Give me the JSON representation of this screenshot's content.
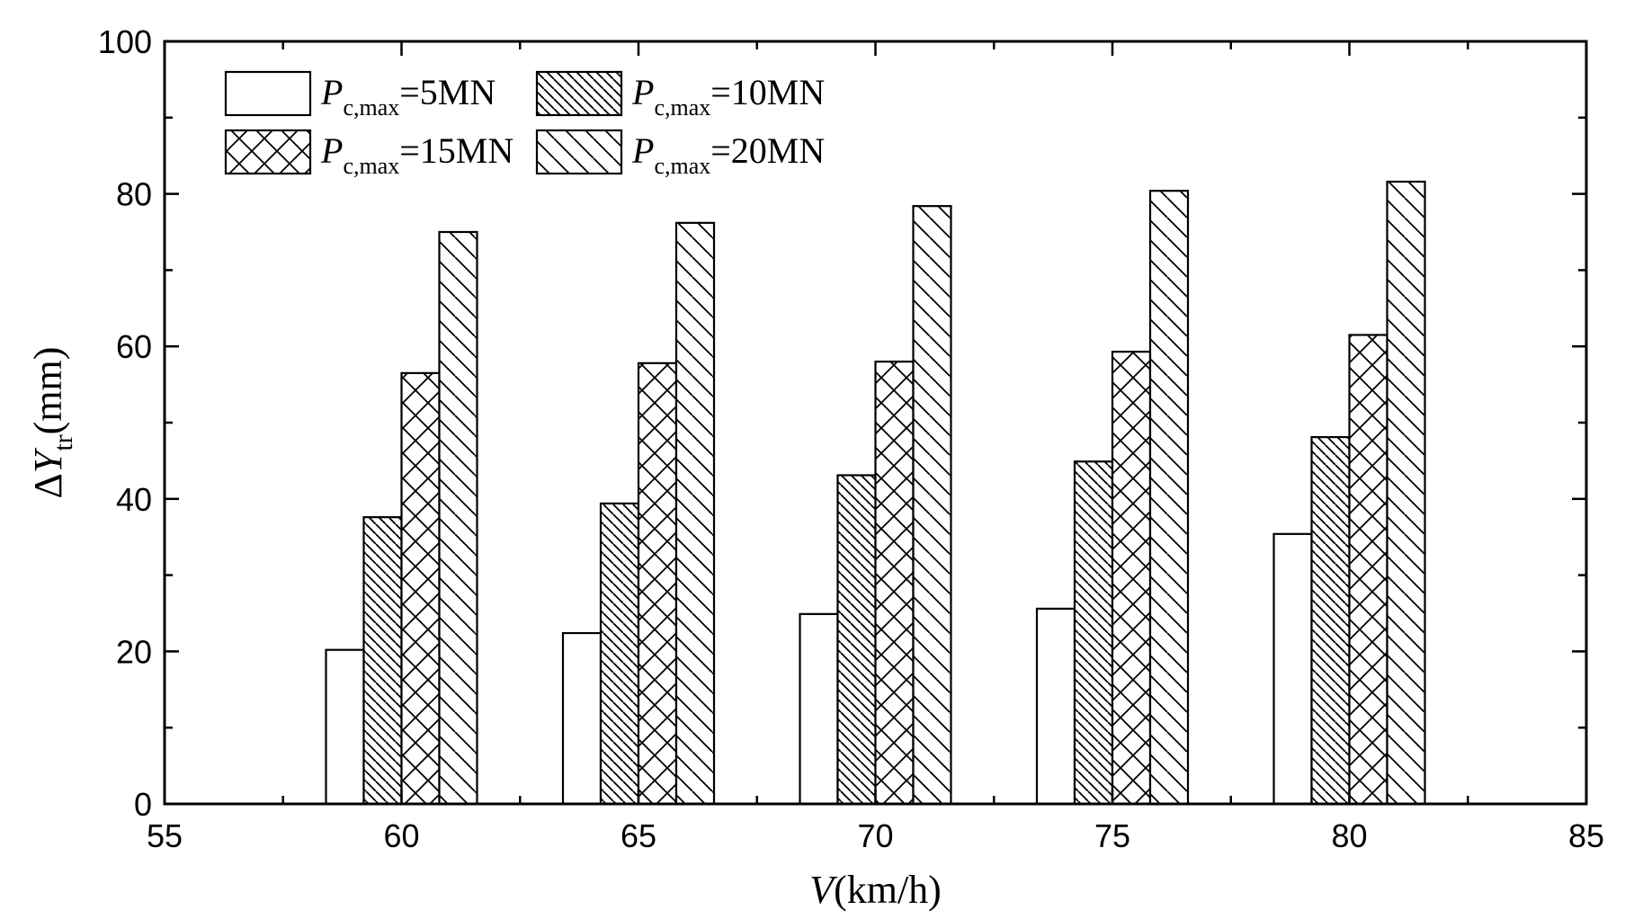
{
  "chart_data": {
    "type": "bar",
    "x_axis": {
      "label_var": "V",
      "label_unit": "(km/h)",
      "min": 55,
      "max": 85,
      "ticks": [
        55,
        60,
        65,
        70,
        75,
        80,
        85
      ],
      "tick_labels": [
        "55",
        "60",
        "65",
        "70",
        "75",
        "80",
        "85"
      ]
    },
    "y_axis": {
      "label_prefix": "ΔY",
      "label_sub": "tr",
      "label_unit": "(mm)",
      "min": 0,
      "max": 100,
      "ticks": [
        0,
        20,
        40,
        60,
        80,
        100
      ],
      "tick_labels": [
        "0",
        "20",
        "40",
        "60",
        "80",
        "100"
      ]
    },
    "categories": [
      60,
      65,
      70,
      75,
      80
    ],
    "series": [
      {
        "name": "P c,max =5MN",
        "values": [
          20.2,
          22.4,
          24.9,
          25.6,
          35.4
        ],
        "pattern": "none"
      },
      {
        "name": "P c,max =10MN",
        "values": [
          37.6,
          39.4,
          43.1,
          44.9,
          48.1
        ],
        "pattern": "dense-diagonal"
      },
      {
        "name": "P c,max =15MN",
        "values": [
          56.5,
          57.8,
          58.0,
          59.3,
          61.5
        ],
        "pattern": "crosshatch"
      },
      {
        "name": "P c,max =20MN",
        "values": [
          75.0,
          76.2,
          78.4,
          80.4,
          81.6
        ],
        "pattern": "sparse-diagonal"
      }
    ],
    "legend": {
      "position": "top-left",
      "entries": [
        {
          "var": "P",
          "sub": "c,max",
          "rest": "=5MN"
        },
        {
          "var": "P",
          "sub": "c,max",
          "rest": "=10MN"
        },
        {
          "var": "P",
          "sub": "c,max",
          "rest": "=15MN"
        },
        {
          "var": "P",
          "sub": "c,max",
          "rest": "=20MN"
        }
      ]
    },
    "grid": false
  }
}
